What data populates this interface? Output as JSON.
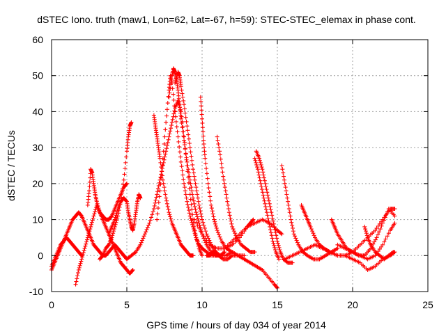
{
  "chart_data": {
    "type": "scatter",
    "title": "dSTEC Iono. truth (maw1, Lon=62, Lat=-67, h=59): STEC-STEC_elemax in phase cont.",
    "xlabel": "GPS time / hours of day 034 of year 2014",
    "ylabel": "dSTEC  / TECUs",
    "xlim": [
      0,
      25
    ],
    "ylim": [
      -10,
      60
    ],
    "x_ticks": [
      "0",
      "5",
      "10",
      "15",
      "20",
      "25"
    ],
    "y_ticks": [
      "-10",
      "0",
      "10",
      "20",
      "30",
      "40",
      "50",
      "60"
    ],
    "grid": true,
    "marker": "plus",
    "color": "#ff0000",
    "series": [
      {
        "x": [
          0.0,
          0.2,
          0.4,
          0.6,
          0.8,
          1.0,
          1.2,
          1.4,
          1.6,
          1.8,
          2.0,
          2.2,
          2.4,
          2.6,
          2.8,
          3.0,
          3.2,
          3.4,
          3.6,
          3.8,
          4.0,
          4.2,
          4.4,
          4.6,
          4.8,
          5.0
        ],
        "y": [
          -4,
          -2,
          0,
          2,
          4,
          6,
          8,
          10,
          11,
          12,
          11,
          9,
          7,
          5,
          3,
          2,
          1,
          0,
          0,
          1,
          2,
          3,
          2,
          1,
          0,
          -1
        ]
      },
      {
        "x": [
          0.0,
          0.2,
          0.4,
          0.6,
          0.8,
          1.0,
          1.2,
          1.4,
          1.6,
          1.8,
          2.0
        ],
        "y": [
          -3,
          -1,
          1,
          3,
          4,
          5,
          4,
          3,
          2,
          1,
          0
        ]
      },
      {
        "x": [
          1.6,
          1.8,
          2.0,
          2.2,
          2.4,
          2.6,
          2.8,
          3.0,
          3.2,
          3.4,
          3.6,
          3.8,
          4.0,
          4.2,
          4.4,
          4.6,
          4.8,
          5.0,
          5.2,
          5.4
        ],
        "y": [
          -8,
          -4,
          -1,
          2,
          5,
          8,
          11,
          14,
          12,
          10,
          8,
          6,
          4,
          2,
          0,
          -2,
          -3,
          -4,
          -5,
          -4
        ]
      },
      {
        "x": [
          2.4,
          2.5,
          2.6,
          2.7,
          2.8,
          2.9,
          3.0,
          3.2,
          3.4,
          3.6,
          3.8,
          4.0,
          4.2,
          4.4,
          4.6,
          4.8,
          5.0
        ],
        "y": [
          14,
          18,
          24,
          23,
          20,
          17,
          15,
          12,
          11,
          10,
          10,
          11,
          13,
          15,
          17,
          19,
          20
        ]
      },
      {
        "x": [
          3.2,
          3.4,
          3.6,
          3.8,
          4.0,
          4.2,
          4.4,
          4.6,
          4.8,
          5.0,
          5.1,
          5.2,
          5.3
        ],
        "y": [
          -1,
          0,
          2,
          3,
          5,
          8,
          11,
          15,
          21,
          29,
          33,
          36,
          37
        ]
      },
      {
        "x": [
          3.8,
          4.0,
          4.2,
          4.4,
          4.6,
          4.8,
          5.0,
          5.1,
          5.2,
          5.3,
          5.4,
          5.5,
          5.6,
          5.7,
          5.8,
          5.9
        ],
        "y": [
          6,
          8,
          10,
          13,
          15,
          16,
          15,
          12,
          10,
          8,
          7,
          9,
          12,
          15,
          17,
          16
        ]
      },
      {
        "x": [
          5.0,
          5.3,
          5.6,
          5.9,
          6.2,
          6.5,
          6.8,
          7.0,
          7.2,
          7.4,
          7.6,
          7.8,
          8.0,
          8.2,
          8.4,
          8.6,
          8.8,
          9.0,
          9.2,
          9.4,
          9.6,
          9.8,
          10.0
        ],
        "y": [
          -1,
          0,
          1,
          3,
          6,
          9,
          13,
          17,
          21,
          25,
          29,
          33,
          37,
          41,
          43,
          40,
          33,
          25,
          17,
          10,
          5,
          2,
          0
        ]
      },
      {
        "x": [
          6.8,
          6.9,
          7.0,
          7.1,
          7.2,
          7.4,
          7.6,
          7.8,
          8.0,
          8.2,
          8.4,
          8.6,
          8.8,
          9.0,
          9.2,
          9.4
        ],
        "y": [
          39,
          36,
          33,
          30,
          27,
          21,
          16,
          12,
          9,
          7,
          5,
          3,
          2,
          1,
          0,
          0
        ]
      },
      {
        "x": [
          7.0,
          7.2,
          7.4,
          7.6,
          7.8,
          7.9,
          8.0,
          8.2,
          8.4,
          8.6,
          8.8,
          9.0,
          9.2,
          9.4,
          9.6,
          9.8,
          10.0,
          10.3,
          10.6,
          11.0
        ],
        "y": [
          10,
          18,
          27,
          37,
          46,
          50,
          48,
          40,
          33,
          26,
          20,
          15,
          11,
          8,
          5,
          3,
          2,
          1,
          0,
          0
        ]
      },
      {
        "x": [
          7.8,
          8.0,
          8.1,
          8.2,
          8.3,
          8.4,
          8.5,
          8.6,
          8.8,
          9.0,
          9.2,
          9.4,
          9.6,
          9.8,
          10.0,
          10.3,
          10.6,
          10.9,
          11.2,
          11.5
        ],
        "y": [
          44,
          50,
          52,
          51,
          49,
          46,
          42,
          38,
          32,
          26,
          21,
          16,
          12,
          9,
          6,
          3,
          1,
          0,
          0,
          1
        ]
      },
      {
        "x": [
          8.2,
          8.4,
          8.5,
          8.6,
          8.8,
          9.0,
          9.2,
          9.4,
          9.6,
          9.8,
          10.0,
          10.3,
          10.6,
          10.9,
          11.2,
          11.6,
          12.0
        ],
        "y": [
          48,
          51,
          50,
          47,
          42,
          36,
          30,
          24,
          19,
          14,
          10,
          6,
          3,
          1,
          0,
          0,
          1
        ]
      },
      {
        "x": [
          9.9,
          10.0,
          10.1,
          10.2,
          10.4,
          10.6,
          10.8,
          11.0,
          11.3,
          11.6,
          12.0,
          12.4,
          12.8
        ],
        "y": [
          44,
          38,
          32,
          27,
          20,
          14,
          10,
          7,
          4,
          2,
          1,
          0,
          0
        ]
      },
      {
        "x": [
          10.3,
          10.5,
          10.7,
          10.9,
          11.1,
          11.4,
          11.7,
          12.0,
          12.4,
          12.8,
          13.2,
          13.6,
          14.0,
          14.4,
          14.8,
          15.0
        ],
        "y": [
          0,
          0,
          1,
          1,
          0,
          -1,
          -1,
          0,
          0,
          -1,
          -2,
          -3,
          -4,
          -6,
          -8,
          -9
        ]
      },
      {
        "x": [
          11.0,
          11.2,
          11.4,
          11.6,
          11.8,
          12.0,
          12.3,
          12.6,
          12.9,
          13.2,
          13.5
        ],
        "y": [
          33,
          28,
          22,
          17,
          12,
          8,
          5,
          3,
          2,
          1,
          1
        ]
      },
      {
        "x": [
          9.5,
          10.0,
          10.5,
          11.0,
          11.5,
          12.0,
          12.5,
          13.0,
          13.2,
          13.4
        ],
        "y": [
          10,
          6,
          3,
          2,
          2,
          3,
          5,
          8,
          9,
          10
        ]
      },
      {
        "x": [
          11.5,
          12.0,
          12.5,
          13.0,
          13.5,
          14.0,
          14.5,
          15.0,
          15.3
        ],
        "y": [
          2,
          4,
          6,
          8,
          9,
          10,
          9,
          7,
          6
        ]
      },
      {
        "x": [
          13.6,
          13.8,
          14.0,
          14.2,
          14.4,
          14.6,
          14.8,
          15.0,
          15.2,
          15.4,
          15.7,
          16.0
        ],
        "y": [
          29,
          27,
          24,
          20,
          16,
          12,
          8,
          4,
          1,
          -1,
          -2,
          -2
        ]
      },
      {
        "x": [
          13.5,
          13.7,
          13.9,
          14.1,
          14.3,
          14.5,
          14.7,
          14.9,
          15.1
        ],
        "y": [
          27,
          24,
          20,
          16,
          12,
          8,
          4,
          1,
          -1
        ]
      },
      {
        "x": [
          15.3,
          15.5,
          15.7,
          15.9,
          16.1,
          16.4,
          16.7,
          17.0,
          17.4,
          17.8,
          18.2,
          18.6,
          19.0
        ],
        "y": [
          25,
          20,
          15,
          10,
          6,
          3,
          1,
          0,
          -1,
          -1,
          0,
          1,
          2
        ]
      },
      {
        "x": [
          16.6,
          16.8,
          17.0,
          17.2,
          17.5,
          17.8,
          18.1,
          18.5,
          19.0,
          19.5,
          20.0,
          20.5,
          21.0,
          21.5,
          22.0,
          22.5,
          22.8
        ],
        "y": [
          14,
          12,
          10,
          8,
          5,
          3,
          2,
          1,
          0,
          0,
          1,
          3,
          5,
          7,
          10,
          13,
          13
        ]
      },
      {
        "x": [
          15.5,
          16.0,
          16.5,
          17.0,
          17.5,
          18.0,
          18.5,
          19.0,
          19.5,
          20.0,
          20.5,
          21.0,
          21.5,
          22.0,
          22.5,
          22.8
        ],
        "y": [
          -1,
          0,
          1,
          2,
          3,
          2,
          1,
          0,
          0,
          -1,
          -2,
          -4,
          -3,
          -1,
          0,
          1
        ]
      },
      {
        "x": [
          18.6,
          18.8,
          19.0,
          19.3,
          19.6,
          20.0,
          20.4,
          20.8,
          21.2,
          21.6,
          22.0,
          22.4,
          22.8
        ],
        "y": [
          10,
          8,
          6,
          4,
          2,
          1,
          0,
          0,
          2,
          5,
          9,
          13,
          11
        ]
      },
      {
        "x": [
          19.0,
          19.5,
          20.0,
          20.5,
          21.0,
          21.5,
          22.0,
          22.5,
          22.8
        ],
        "y": [
          3,
          2,
          1,
          0,
          -1,
          0,
          3,
          7,
          9
        ]
      },
      {
        "x": [
          20.8,
          21.0,
          21.2,
          21.5,
          21.8,
          22.1,
          22.4,
          22.7
        ],
        "y": [
          8,
          5,
          3,
          1,
          0,
          -1,
          0,
          1
        ]
      }
    ]
  }
}
